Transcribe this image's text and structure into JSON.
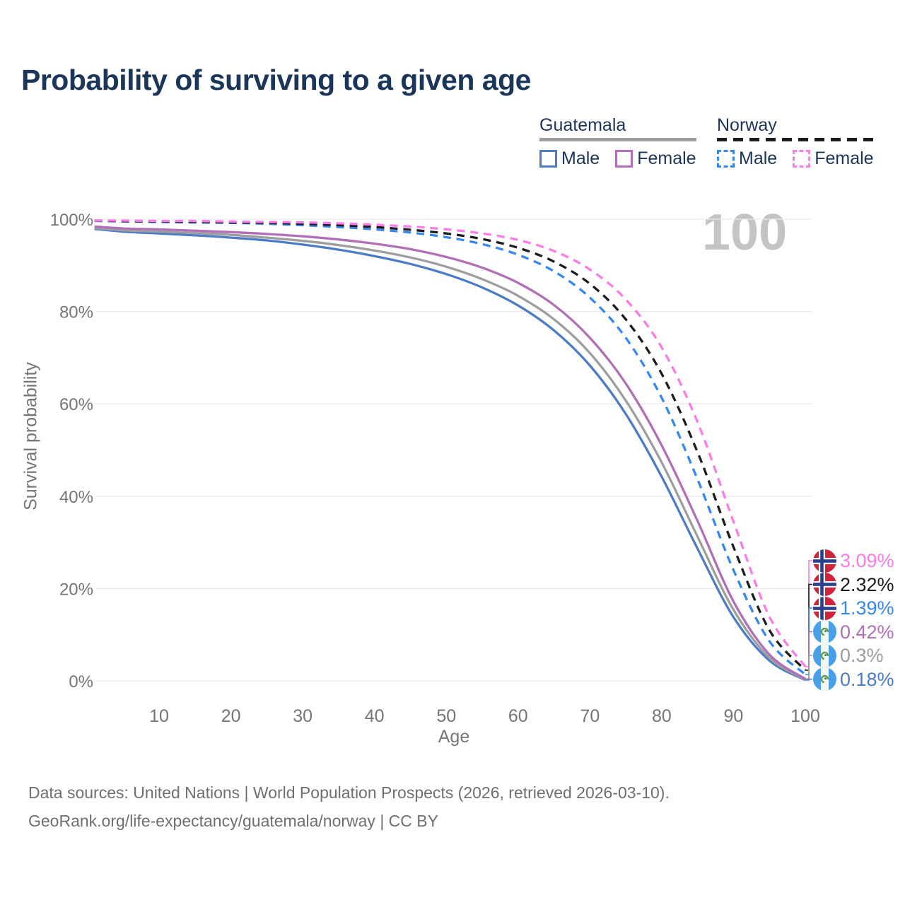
{
  "chart_data": {
    "type": "line",
    "title": "Probability of surviving to a given age",
    "xlabel": "Age",
    "ylabel": "Survival probability",
    "watermark": "100",
    "xlim": [
      0,
      100
    ],
    "ylim": [
      0,
      100
    ],
    "grid": true,
    "legend_position": "top-right",
    "x_ticks": [
      10,
      20,
      30,
      40,
      50,
      60,
      70,
      80,
      90,
      100
    ],
    "y_ticks": [
      {
        "value": 0,
        "label": "0%"
      },
      {
        "value": 20,
        "label": "20%"
      },
      {
        "value": 40,
        "label": "40%"
      },
      {
        "value": 60,
        "label": "60%"
      },
      {
        "value": 80,
        "label": "80%"
      },
      {
        "value": 100,
        "label": "100%"
      }
    ],
    "x": [
      1,
      5,
      10,
      15,
      20,
      25,
      30,
      35,
      40,
      45,
      50,
      55,
      60,
      65,
      70,
      75,
      80,
      85,
      90,
      95,
      100
    ],
    "series": [
      {
        "name": "Guatemala — Male",
        "group": "Guatemala",
        "style": "solid",
        "color": "#4d7cc7",
        "flag": "guatemala",
        "end_label": "0.18%",
        "values": [
          97.9,
          97.3,
          96.9,
          96.5,
          96.0,
          95.4,
          94.5,
          93.4,
          92.0,
          90.3,
          88.1,
          85.2,
          81.3,
          75.9,
          68.3,
          57.8,
          44.2,
          28.6,
          13.8,
          4.4,
          0.18
        ]
      },
      {
        "name": "Guatemala",
        "group": "Guatemala",
        "style": "solid",
        "color": "#9e9e9e",
        "flag": "guatemala",
        "end_label": "0.3%",
        "values": [
          98.1,
          97.6,
          97.3,
          97.0,
          96.6,
          96.0,
          95.3,
          94.4,
          93.2,
          91.7,
          89.7,
          87.0,
          83.4,
          78.3,
          71.0,
          60.7,
          47.3,
          31.2,
          15.4,
          5.0,
          0.3
        ]
      },
      {
        "name": "Guatemala — Female",
        "group": "Guatemala",
        "style": "solid",
        "color": "#b06fb6",
        "flag": "guatemala",
        "end_label": "0.42%",
        "values": [
          98.4,
          98.0,
          97.8,
          97.5,
          97.2,
          96.8,
          96.3,
          95.6,
          94.7,
          93.5,
          91.8,
          89.5,
          86.2,
          81.4,
          74.3,
          64.4,
          51.0,
          34.6,
          17.2,
          5.7,
          0.42
        ]
      },
      {
        "name": "Norway — Male",
        "group": "Norway",
        "style": "dashed",
        "color": "#3787ee",
        "flag": "norway",
        "end_label": "1.39%",
        "values": [
          99.6,
          99.5,
          99.4,
          99.3,
          99.2,
          99.0,
          98.7,
          98.3,
          97.8,
          97.1,
          96.1,
          94.6,
          92.3,
          88.7,
          83.0,
          74.3,
          61.3,
          43.6,
          24.0,
          8.6,
          1.39
        ]
      },
      {
        "name": "Norway",
        "group": "Norway",
        "style": "dashed",
        "color": "#1c1c1c",
        "flag": "norway",
        "end_label": "2.32%",
        "values": [
          99.7,
          99.6,
          99.5,
          99.4,
          99.3,
          99.2,
          99.0,
          98.7,
          98.3,
          97.7,
          96.9,
          95.7,
          93.8,
          90.8,
          86.0,
          78.3,
          66.5,
          49.5,
          29.0,
          11.0,
          2.32
        ]
      },
      {
        "name": "Norway — Female",
        "group": "Norway",
        "style": "dashed",
        "color": "#fb7ce8",
        "flag": "norway",
        "end_label": "3.09%",
        "values": [
          99.7,
          99.7,
          99.6,
          99.6,
          99.5,
          99.4,
          99.3,
          99.1,
          98.8,
          98.4,
          97.8,
          96.9,
          95.5,
          93.1,
          89.1,
          82.6,
          72.2,
          56.0,
          34.5,
          13.9,
          3.09
        ]
      }
    ]
  },
  "legend": {
    "groups": [
      {
        "label": "Guatemala",
        "underline_style": "solid",
        "underline_color": "#9e9e9e",
        "items": [
          {
            "label": "Male",
            "color": "#4d7cc7",
            "style": "solid"
          },
          {
            "label": "Female",
            "color": "#b06fb6",
            "style": "solid"
          }
        ]
      },
      {
        "label": "Norway",
        "underline_style": "dashed",
        "underline_color": "#1c1c1c",
        "items": [
          {
            "label": "Male",
            "color": "#3787ee",
            "style": "dashed"
          },
          {
            "label": "Female",
            "color": "#fb7ce8",
            "style": "dashed"
          }
        ]
      }
    ]
  },
  "footer": {
    "line1": "Data sources: United Nations | World Population Prospects (2026, retrieved 2026-03-10).",
    "line2": "GeoRank.org/life-expectancy/guatemala/norway | CC BY"
  },
  "colors": {
    "title_text": "#1c3659",
    "legend_text": "#1c3659",
    "axis_text": "#757575",
    "grid": "#e9e9e9",
    "watermark": "#c4c4c4",
    "footer_text": "#6f6f6f"
  },
  "flags": {
    "norway": {
      "bg": "#d0243c",
      "cross": "#ffffff",
      "inner_cross": "#2b3f8e"
    },
    "guatemala": {
      "band": "#4aa0e8",
      "center": "#f4f6f3",
      "emblem": "#5f9b4d",
      "emblem_dot": "#4d7a3e"
    }
  }
}
